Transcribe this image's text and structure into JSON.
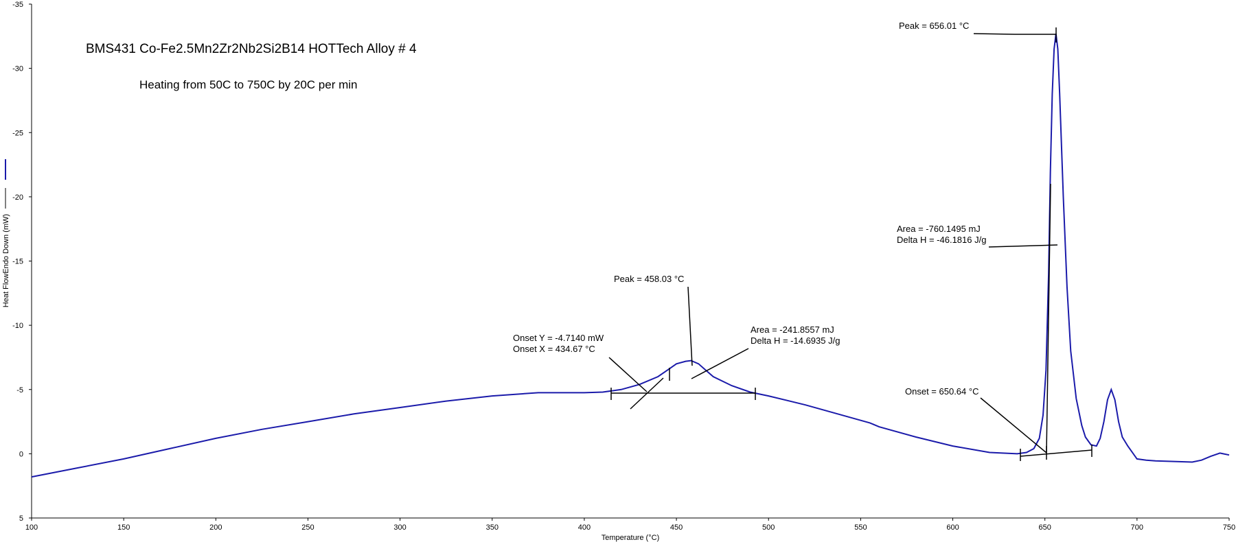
{
  "chart_data": {
    "type": "line",
    "title": "BMS431 Co-Fe2.5Mn2Zr2Nb2Si2B14 HOTTech Alloy # 4",
    "subtitle": "Heating from 50C to 750C by 20C per min",
    "xlabel": "Temperature (°C)",
    "ylabel": "Heat FlowEndo Down (mW)",
    "xlim": [
      100,
      750
    ],
    "ylim": [
      5,
      -35
    ],
    "x_ticks": [
      "100",
      "150",
      "200",
      "250",
      "300",
      "350",
      "400",
      "450",
      "500",
      "550",
      "600",
      "650",
      "700",
      "750"
    ],
    "x_tick_values": [
      100,
      150,
      200,
      250,
      300,
      350,
      400,
      450,
      500,
      550,
      600,
      650,
      700,
      750
    ],
    "y_ticks": [
      "-35",
      "-30",
      "-25",
      "-20",
      "-15",
      "-10",
      "-5",
      "0",
      "5"
    ],
    "y_tick_values": [
      -35,
      -30,
      -25,
      -20,
      -15,
      -10,
      -5,
      0,
      5
    ],
    "line_color": "#1a1aaa",
    "annotation_color": "#000000",
    "series": [
      {
        "color": "#1a1aaa",
        "x": [
          100,
          125,
          150,
          175,
          200,
          225,
          250,
          275,
          300,
          325,
          350,
          375,
          400,
          410,
          420,
          430,
          440,
          445,
          450,
          455,
          458,
          462,
          466,
          470,
          480,
          490,
          500,
          520,
          540,
          550,
          555,
          560,
          580,
          600,
          620,
          635,
          640,
          644,
          647,
          649,
          650.6,
          652,
          653,
          654,
          655,
          656,
          657,
          658,
          660,
          662,
          664,
          667,
          670,
          672,
          675,
          678,
          680,
          682,
          684,
          686,
          688,
          690,
          692,
          695,
          700,
          705,
          710,
          720,
          730,
          735,
          740,
          745,
          750
        ],
        "y": [
          1.8,
          1.1,
          0.4,
          -0.4,
          -1.2,
          -1.9,
          -2.5,
          -3.1,
          -3.6,
          -4.1,
          -4.5,
          -4.75,
          -4.75,
          -4.8,
          -5.0,
          -5.4,
          -6.0,
          -6.5,
          -7.0,
          -7.2,
          -7.25,
          -7.0,
          -6.5,
          -6.0,
          -5.3,
          -4.8,
          -4.5,
          -3.8,
          -3.0,
          -2.6,
          -2.4,
          -2.1,
          -1.3,
          -0.6,
          -0.1,
          0.0,
          -0.1,
          -0.4,
          -1.2,
          -3.0,
          -6.5,
          -14.0,
          -22.0,
          -28.0,
          -31.5,
          -32.7,
          -31.5,
          -28.0,
          -20.0,
          -13.0,
          -8.0,
          -4.3,
          -2.2,
          -1.3,
          -0.7,
          -0.6,
          -1.2,
          -2.5,
          -4.2,
          -5.0,
          -4.2,
          -2.5,
          -1.3,
          -0.6,
          0.4,
          0.5,
          0.55,
          0.6,
          0.65,
          0.5,
          0.2,
          -0.05,
          0.1
        ]
      }
    ],
    "annotations": [
      {
        "text": "Peak = 656.01 °C"
      },
      {
        "text": "Area = -760.1495 mJ"
      },
      {
        "text": "Delta H = -46.1816 J/g"
      },
      {
        "text": "Onset = 650.64 °C"
      },
      {
        "text": "Peak = 458.03 °C"
      },
      {
        "text": "Area = -241.8557 mJ"
      },
      {
        "text": "Delta H = -14.6935 J/g"
      },
      {
        "text": "Onset Y = -4.7140 mW"
      },
      {
        "text": "Onset X = 434.67 °C"
      }
    ]
  }
}
